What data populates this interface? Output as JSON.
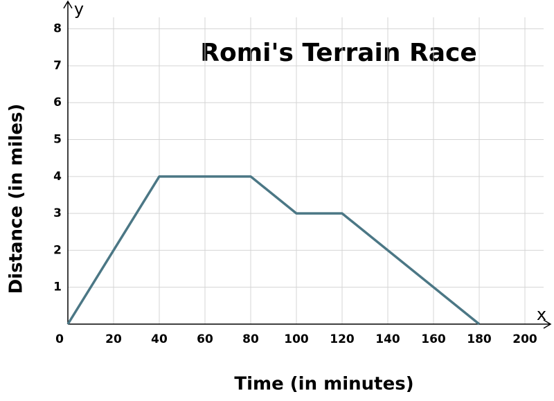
{
  "chart_data": {
    "type": "line",
    "title": "Romi's Terrain Race",
    "x_label": "Time (in minutes)",
    "y_label": "Distance (in miles)",
    "x_axis_name": "x",
    "y_axis_name": "y",
    "x": [
      0,
      40,
      80,
      100,
      120,
      180
    ],
    "series": [
      {
        "name": "Distance",
        "color": "#4b7785",
        "values": [
          0,
          4,
          4,
          3,
          3,
          0
        ]
      }
    ],
    "xlim": [
      0,
      210
    ],
    "ylim": [
      0,
      8.5
    ],
    "xticks": [
      0,
      20,
      40,
      60,
      80,
      100,
      120,
      140,
      160,
      180,
      200
    ],
    "yticks": [
      1,
      2,
      3,
      4,
      5,
      6,
      7,
      8
    ],
    "grid": true
  }
}
